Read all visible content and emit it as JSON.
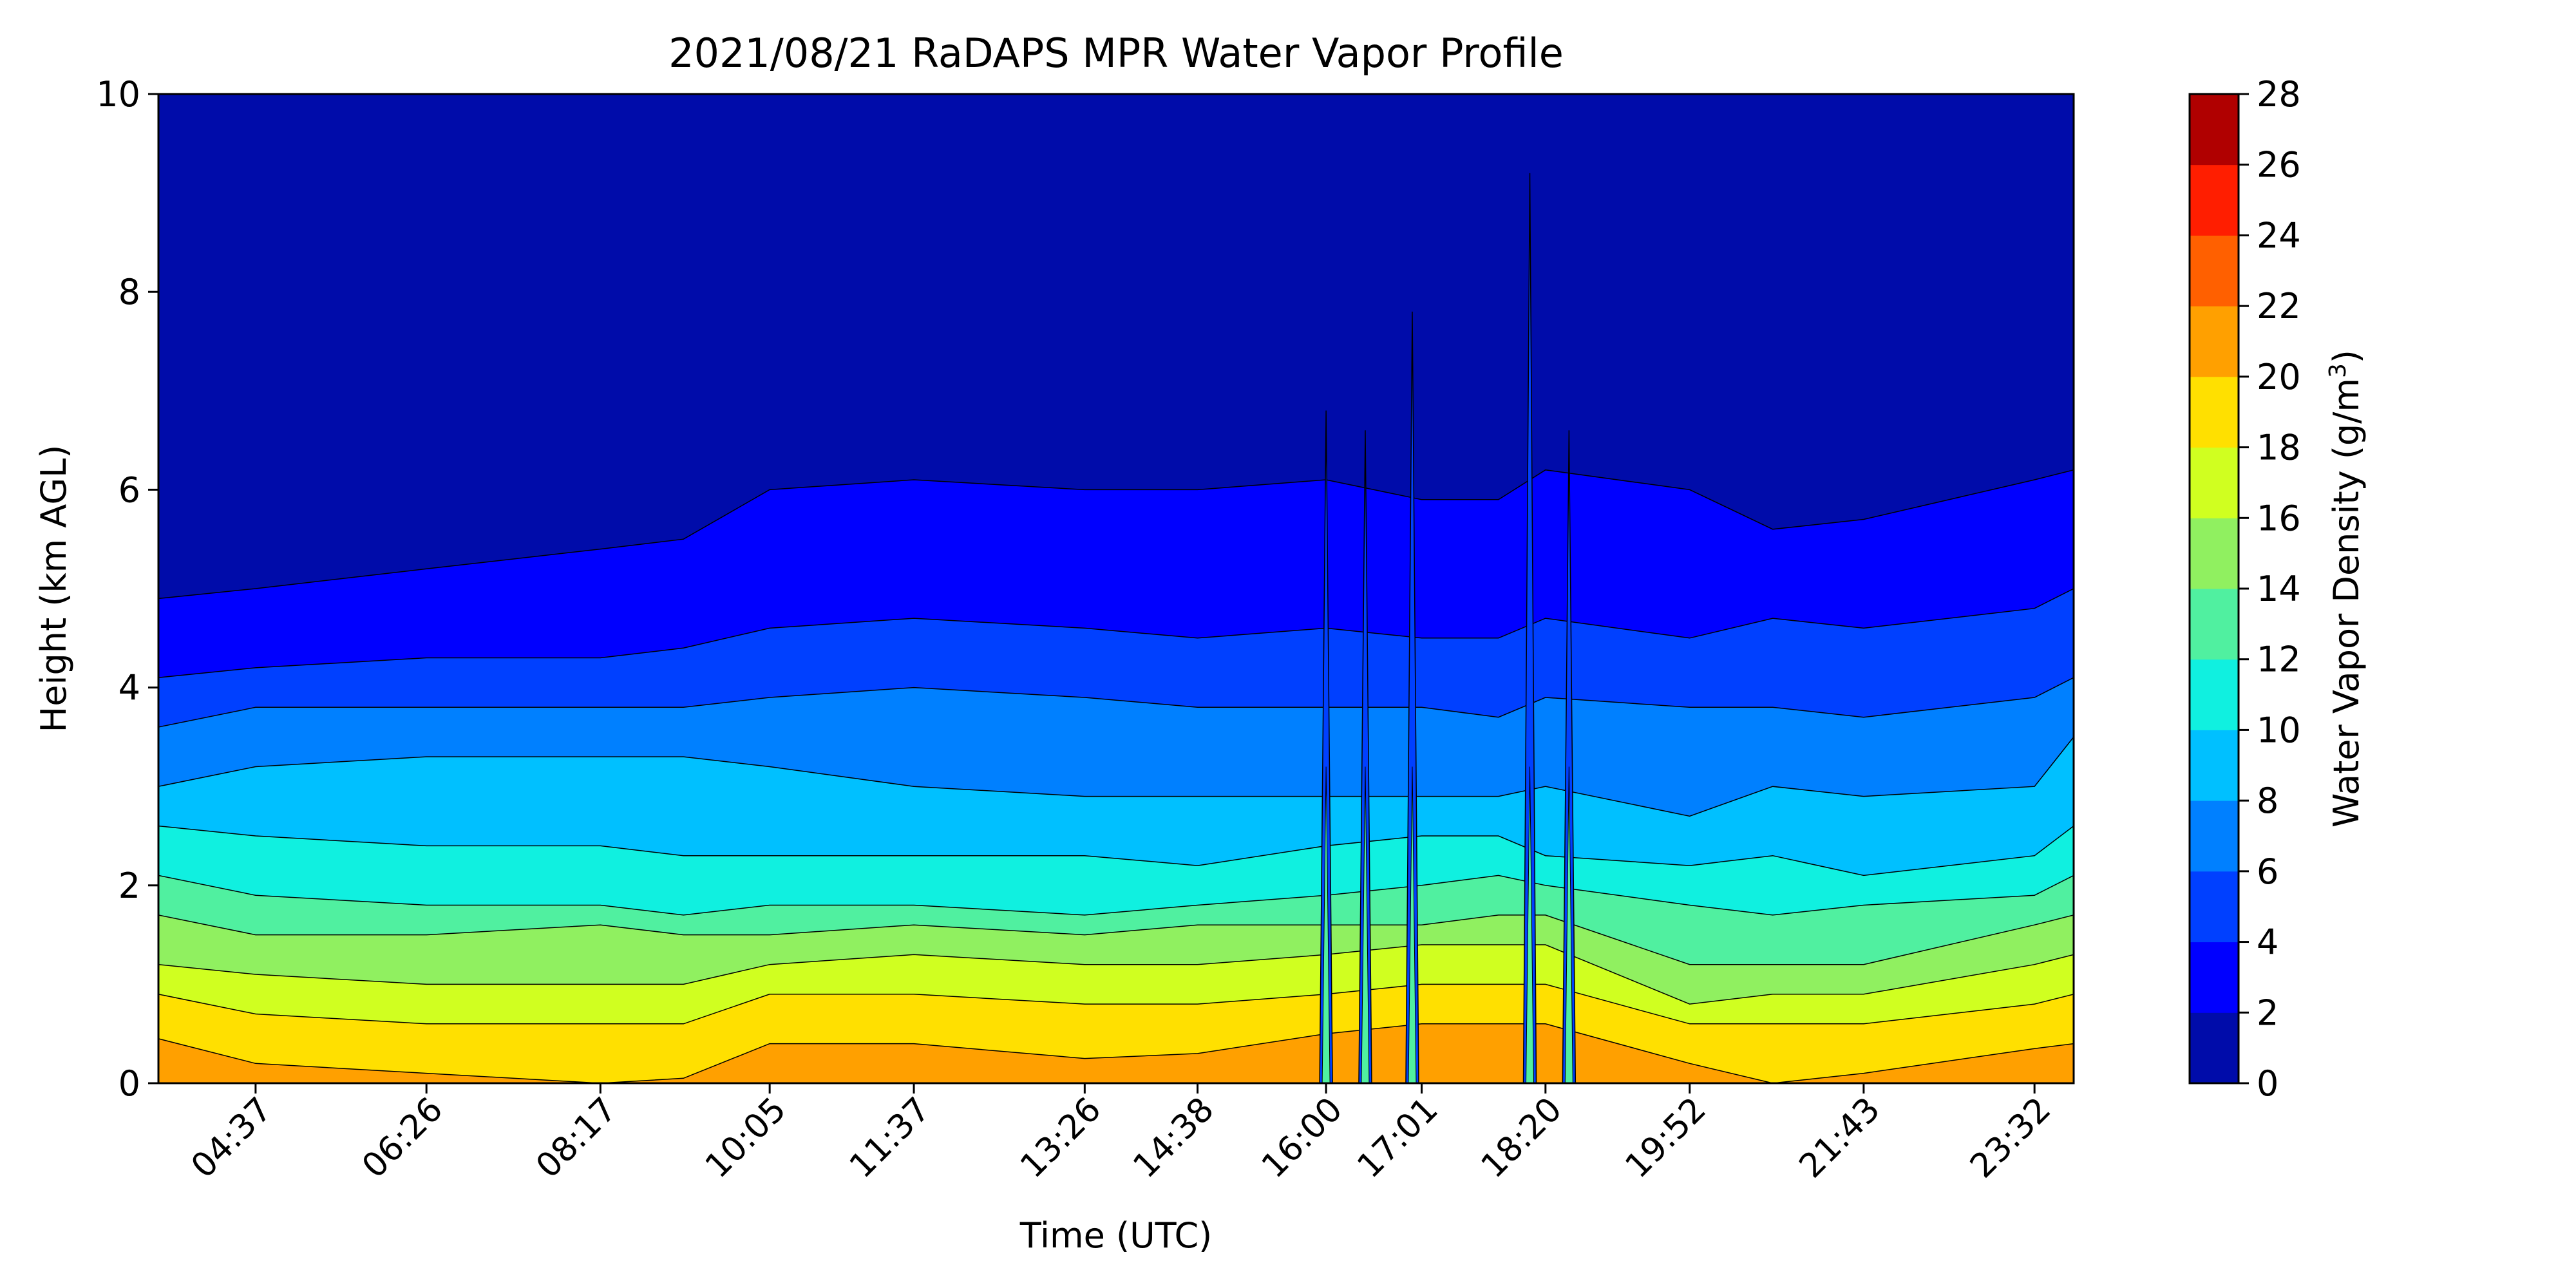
{
  "chart_data": {
    "type": "heatmap",
    "subtype": "filled-contour",
    "title": "2021/08/21 RaDAPS MPR Water Vapor Profile",
    "xlabel": "Time (UTC)",
    "ylabel": "Height (km AGL)",
    "colorbar": {
      "label_prefix": "Water Vapor Density (g/m",
      "label_sup": "3",
      "label_suffix": ")",
      "levels": [
        0,
        2,
        4,
        6,
        8,
        10,
        12,
        14,
        16,
        18,
        20,
        22,
        24,
        26,
        28
      ],
      "colors": [
        "#000caa",
        "#0000ff",
        "#0040ff",
        "#0080ff",
        "#00c0ff",
        "#10f0e0",
        "#50f0a0",
        "#90f060",
        "#d0ff20",
        "#ffe000",
        "#ffa000",
        "#ff6000",
        "#ff1e00",
        "#b00000"
      ]
    },
    "x_axis": {
      "range": [
        "03:35",
        "23:57"
      ],
      "ticks": [
        "04:37",
        "06:26",
        "08:17",
        "10:05",
        "11:37",
        "13:26",
        "14:38",
        "16:00",
        "17:01",
        "18:20",
        "19:52",
        "21:43",
        "23:32"
      ],
      "tick_label_rotation_deg": 45
    },
    "y_axis": {
      "range": [
        0,
        10
      ],
      "ticks": [
        0,
        2,
        4,
        6,
        8,
        10
      ]
    },
    "contour_boundary_heights_km": {
      "times": [
        "03:35",
        "04:37",
        "06:26",
        "08:17",
        "09:10",
        "10:05",
        "11:37",
        "13:26",
        "14:38",
        "16:00",
        "17:01",
        "17:50",
        "18:20",
        "19:52",
        "20:45",
        "21:43",
        "23:32",
        "23:57"
      ],
      "levels": {
        "2": [
          4.9,
          5.0,
          5.2,
          5.4,
          5.5,
          6.0,
          6.1,
          6.0,
          6.0,
          6.1,
          5.9,
          5.9,
          6.2,
          6.0,
          5.6,
          5.7,
          6.1,
          6.2
        ],
        "4": [
          4.1,
          4.2,
          4.3,
          4.3,
          4.4,
          4.6,
          4.7,
          4.6,
          4.5,
          4.6,
          4.5,
          4.5,
          4.7,
          4.5,
          4.7,
          4.6,
          4.8,
          5.0
        ],
        "6": [
          3.6,
          3.8,
          3.8,
          3.8,
          3.8,
          3.9,
          4.0,
          3.9,
          3.8,
          3.8,
          3.8,
          3.7,
          3.9,
          3.8,
          3.8,
          3.7,
          3.9,
          4.1
        ],
        "8": [
          3.0,
          3.2,
          3.3,
          3.3,
          3.3,
          3.2,
          3.0,
          2.9,
          2.9,
          2.9,
          2.9,
          2.9,
          3.0,
          2.7,
          3.0,
          2.9,
          3.0,
          3.5
        ],
        "10": [
          2.6,
          2.5,
          2.4,
          2.4,
          2.3,
          2.3,
          2.3,
          2.3,
          2.2,
          2.4,
          2.5,
          2.5,
          2.3,
          2.2,
          2.3,
          2.1,
          2.3,
          2.6
        ],
        "12": [
          2.1,
          1.9,
          1.8,
          1.8,
          1.7,
          1.8,
          1.8,
          1.7,
          1.8,
          1.9,
          2.0,
          2.1,
          2.0,
          1.8,
          1.7,
          1.8,
          1.9,
          2.1
        ],
        "14": [
          1.7,
          1.5,
          1.5,
          1.6,
          1.5,
          1.5,
          1.6,
          1.5,
          1.6,
          1.6,
          1.6,
          1.7,
          1.7,
          1.2,
          1.2,
          1.2,
          1.6,
          1.7
        ],
        "16": [
          1.2,
          1.1,
          1.0,
          1.0,
          1.0,
          1.2,
          1.3,
          1.2,
          1.2,
          1.3,
          1.4,
          1.4,
          1.4,
          0.8,
          0.9,
          0.9,
          1.2,
          1.3
        ],
        "18": [
          0.9,
          0.7,
          0.6,
          0.6,
          0.6,
          0.9,
          0.9,
          0.8,
          0.8,
          0.9,
          1.0,
          1.0,
          1.0,
          0.6,
          0.6,
          0.6,
          0.8,
          0.9
        ],
        "20": [
          0.45,
          0.2,
          0.1,
          0.0,
          0.05,
          0.4,
          0.4,
          0.25,
          0.3,
          0.5,
          0.6,
          0.6,
          0.6,
          0.2,
          0.0,
          0.1,
          0.35,
          0.4
        ]
      }
    },
    "spikes": [
      {
        "time": "16:00",
        "top_km": 6.8
      },
      {
        "time": "16:25",
        "top_km": 6.6
      },
      {
        "time": "16:55",
        "top_km": 7.8
      },
      {
        "time": "18:10",
        "top_km": 9.2
      },
      {
        "time": "18:35",
        "top_km": 6.6
      }
    ]
  }
}
